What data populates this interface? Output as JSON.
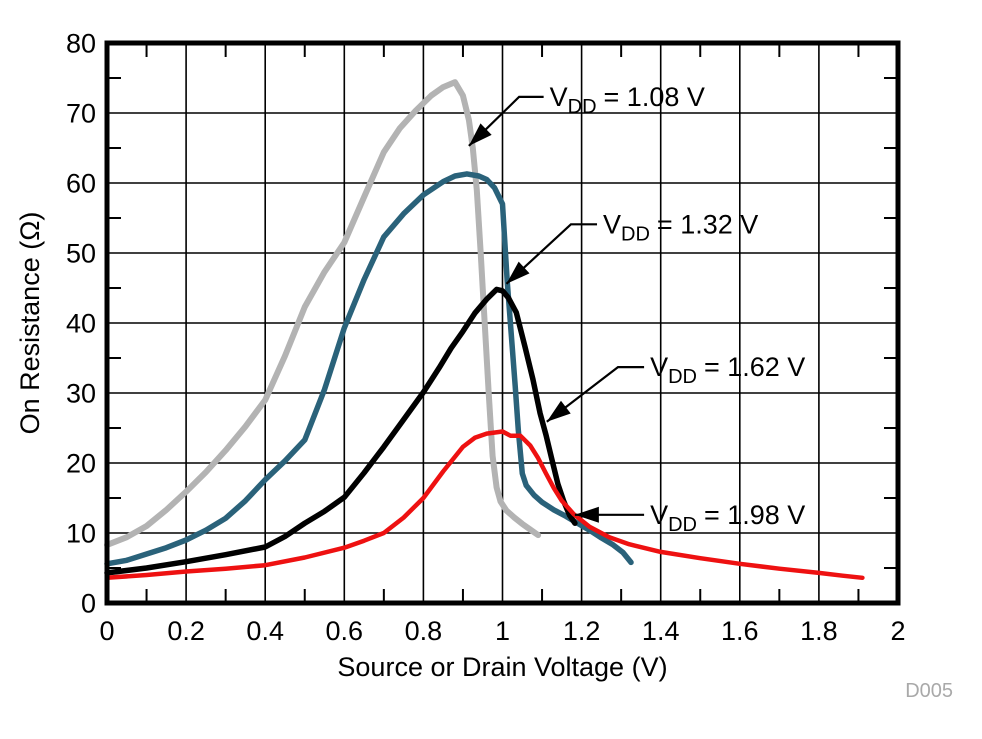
{
  "chart_data": {
    "type": "line",
    "xlabel": "Source or Drain Voltage (V)",
    "ylabel": "On Resistance (Ω)",
    "xlim": [
      0,
      2
    ],
    "ylim": [
      0,
      80
    ],
    "grid": "major gridlines both axes, inward minor ticks on frame",
    "legend_position": "inline annotations with leader arrows",
    "x_ticks": {
      "values": [
        0,
        0.2,
        0.4,
        0.6,
        0.8,
        1.0,
        1.2,
        1.4,
        1.6,
        1.8,
        2.0
      ],
      "labels": [
        "0",
        "0.2",
        "0.4",
        "0.6",
        "0.8",
        "1",
        "1.2",
        "1.4",
        "1.6",
        "1.8",
        "2"
      ]
    },
    "y_ticks": {
      "values": [
        0,
        10,
        20,
        30,
        40,
        50,
        60,
        70,
        80
      ],
      "labels": [
        "0",
        "10",
        "20",
        "30",
        "40",
        "50",
        "60",
        "70",
        "80"
      ]
    },
    "x_minor_ticks": [
      0.1,
      0.3,
      0.5,
      0.7,
      0.9,
      1.1,
      1.3,
      1.5,
      1.7,
      1.9
    ],
    "y_minor_ticks": [
      5,
      15,
      25,
      35,
      45,
      55,
      65,
      75
    ],
    "watermark": "D005",
    "colors": {
      "frame": "#000000",
      "grid": "#000000",
      "watermark": "#a9a9a9"
    },
    "series": [
      {
        "id": "vdd-1-08",
        "name": "VDD = 1.08 V",
        "color": "#b3b3b3",
        "width": 6,
        "points": [
          [
            0,
            8.3
          ],
          [
            0.05,
            9.4
          ],
          [
            0.1,
            11.0
          ],
          [
            0.15,
            13.3
          ],
          [
            0.2,
            15.9
          ],
          [
            0.25,
            18.7
          ],
          [
            0.3,
            21.8
          ],
          [
            0.35,
            25.2
          ],
          [
            0.4,
            29.0
          ],
          [
            0.45,
            35.3
          ],
          [
            0.5,
            42.3
          ],
          [
            0.55,
            47.3
          ],
          [
            0.6,
            51.5
          ],
          [
            0.65,
            58.0
          ],
          [
            0.7,
            64.4
          ],
          [
            0.74,
            67.8
          ],
          [
            0.78,
            70.3
          ],
          [
            0.82,
            72.5
          ],
          [
            0.85,
            73.7
          ],
          [
            0.88,
            74.4
          ],
          [
            0.9,
            72.5
          ],
          [
            0.915,
            69.0
          ],
          [
            0.925,
            65.0
          ],
          [
            0.935,
            59.0
          ],
          [
            0.945,
            50.0
          ],
          [
            0.955,
            40.0
          ],
          [
            0.965,
            30.0
          ],
          [
            0.975,
            21.0
          ],
          [
            0.985,
            16.5
          ],
          [
            0.995,
            14.5
          ],
          [
            1.01,
            13.2
          ],
          [
            1.03,
            12.2
          ],
          [
            1.05,
            11.3
          ],
          [
            1.07,
            10.5
          ],
          [
            1.09,
            9.7
          ]
        ]
      },
      {
        "id": "vdd-1-32",
        "name": "VDD = 1.32 V",
        "color": "#2a627a",
        "width": 5.5,
        "points": [
          [
            0,
            5.6
          ],
          [
            0.05,
            6.1
          ],
          [
            0.1,
            7.0
          ],
          [
            0.15,
            7.9
          ],
          [
            0.2,
            9.0
          ],
          [
            0.25,
            10.4
          ],
          [
            0.3,
            12.1
          ],
          [
            0.35,
            14.6
          ],
          [
            0.4,
            17.6
          ],
          [
            0.45,
            20.3
          ],
          [
            0.5,
            23.3
          ],
          [
            0.55,
            30.5
          ],
          [
            0.6,
            39.3
          ],
          [
            0.65,
            46.2
          ],
          [
            0.7,
            52.3
          ],
          [
            0.75,
            55.6
          ],
          [
            0.8,
            58.3
          ],
          [
            0.85,
            60.2
          ],
          [
            0.88,
            61.0
          ],
          [
            0.91,
            61.3
          ],
          [
            0.94,
            61.0
          ],
          [
            0.96,
            60.5
          ],
          [
            0.98,
            59.3
          ],
          [
            1.0,
            57.0
          ],
          [
            1.012,
            46.0
          ],
          [
            1.024,
            37.0
          ],
          [
            1.032,
            31.0
          ],
          [
            1.04,
            24.7
          ],
          [
            1.05,
            18.5
          ],
          [
            1.06,
            16.8
          ],
          [
            1.08,
            15.4
          ],
          [
            1.1,
            14.4
          ],
          [
            1.13,
            13.3
          ],
          [
            1.16,
            12.4
          ],
          [
            1.19,
            11.4
          ],
          [
            1.22,
            10.4
          ],
          [
            1.25,
            9.3
          ],
          [
            1.28,
            8.3
          ],
          [
            1.305,
            7.2
          ],
          [
            1.325,
            5.8
          ]
        ]
      },
      {
        "id": "vdd-1-62",
        "name": "VDD = 1.62 V",
        "color": "#000000",
        "width": 5.5,
        "points": [
          [
            0,
            4.3
          ],
          [
            0.1,
            5.0
          ],
          [
            0.2,
            5.9
          ],
          [
            0.3,
            6.9
          ],
          [
            0.4,
            8.0
          ],
          [
            0.45,
            9.5
          ],
          [
            0.5,
            11.4
          ],
          [
            0.55,
            13.1
          ],
          [
            0.6,
            15.1
          ],
          [
            0.65,
            18.6
          ],
          [
            0.7,
            22.3
          ],
          [
            0.75,
            26.2
          ],
          [
            0.8,
            30.1
          ],
          [
            0.84,
            33.6
          ],
          [
            0.87,
            36.4
          ],
          [
            0.9,
            38.8
          ],
          [
            0.93,
            41.4
          ],
          [
            0.96,
            43.4
          ],
          [
            0.985,
            44.8
          ],
          [
            1.0,
            44.6
          ],
          [
            1.015,
            43.6
          ],
          [
            1.035,
            41.5
          ],
          [
            1.057,
            36.6
          ],
          [
            1.077,
            31.9
          ],
          [
            1.095,
            27.1
          ],
          [
            1.11,
            24.0
          ],
          [
            1.125,
            20.5
          ],
          [
            1.14,
            17.0
          ],
          [
            1.155,
            14.5
          ],
          [
            1.17,
            12.5
          ],
          [
            1.183,
            11.4
          ]
        ]
      },
      {
        "id": "vdd-1-98",
        "name": "VDD = 1.98 V",
        "color": "#ee1111",
        "width": 4.5,
        "points": [
          [
            0,
            3.6
          ],
          [
            0.1,
            4.0
          ],
          [
            0.2,
            4.5
          ],
          [
            0.3,
            4.9
          ],
          [
            0.4,
            5.4
          ],
          [
            0.5,
            6.5
          ],
          [
            0.6,
            7.9
          ],
          [
            0.65,
            8.9
          ],
          [
            0.7,
            10.0
          ],
          [
            0.75,
            12.2
          ],
          [
            0.8,
            15.0
          ],
          [
            0.85,
            18.8
          ],
          [
            0.9,
            22.3
          ],
          [
            0.93,
            23.6
          ],
          [
            0.96,
            24.2
          ],
          [
            1.0,
            24.5
          ],
          [
            1.02,
            23.9
          ],
          [
            1.045,
            23.9
          ],
          [
            1.07,
            22.5
          ],
          [
            1.09,
            20.7
          ],
          [
            1.11,
            18.5
          ],
          [
            1.13,
            16.4
          ],
          [
            1.15,
            14.6
          ],
          [
            1.18,
            12.7
          ],
          [
            1.22,
            10.9
          ],
          [
            1.27,
            9.4
          ],
          [
            1.32,
            8.4
          ],
          [
            1.4,
            7.3
          ],
          [
            1.5,
            6.4
          ],
          [
            1.6,
            5.6
          ],
          [
            1.7,
            4.9
          ],
          [
            1.8,
            4.3
          ],
          [
            1.86,
            3.9
          ],
          [
            1.91,
            3.6
          ]
        ]
      }
    ],
    "annotations": [
      {
        "id": "ann-vdd-1-08",
        "label": {
          "pre": "V",
          "sub": "DD",
          "post": "= 1.08 V"
        },
        "text_at": [
          1.104,
          72.3
        ],
        "leader": [
          [
            1.104,
            72.3
          ],
          [
            1.042,
            72.3
          ],
          [
            0.915,
            65.3
          ]
        ]
      },
      {
        "id": "ann-vdd-1-32",
        "label": {
          "pre": "V",
          "sub": "DD",
          "post": "= 1.32 V"
        },
        "text_at": [
          1.239,
          54.1
        ],
        "leader": [
          [
            1.239,
            54.1
          ],
          [
            1.173,
            54.1
          ],
          [
            1.01,
            45.6
          ]
        ]
      },
      {
        "id": "ann-vdd-1-62",
        "label": {
          "pre": "V",
          "sub": "DD",
          "post": "= 1.62 V"
        },
        "text_at": [
          1.358,
          33.7
        ],
        "leader": [
          [
            1.358,
            33.7
          ],
          [
            1.292,
            33.7
          ],
          [
            1.112,
            25.9
          ]
        ]
      },
      {
        "id": "ann-vdd-1-98",
        "label": {
          "pre": "V",
          "sub": "DD",
          "post": "= 1.98 V"
        },
        "text_at": [
          1.358,
          12.6
        ],
        "leader": [
          [
            1.358,
            12.6
          ],
          [
            1.183,
            12.6
          ]
        ]
      }
    ]
  }
}
